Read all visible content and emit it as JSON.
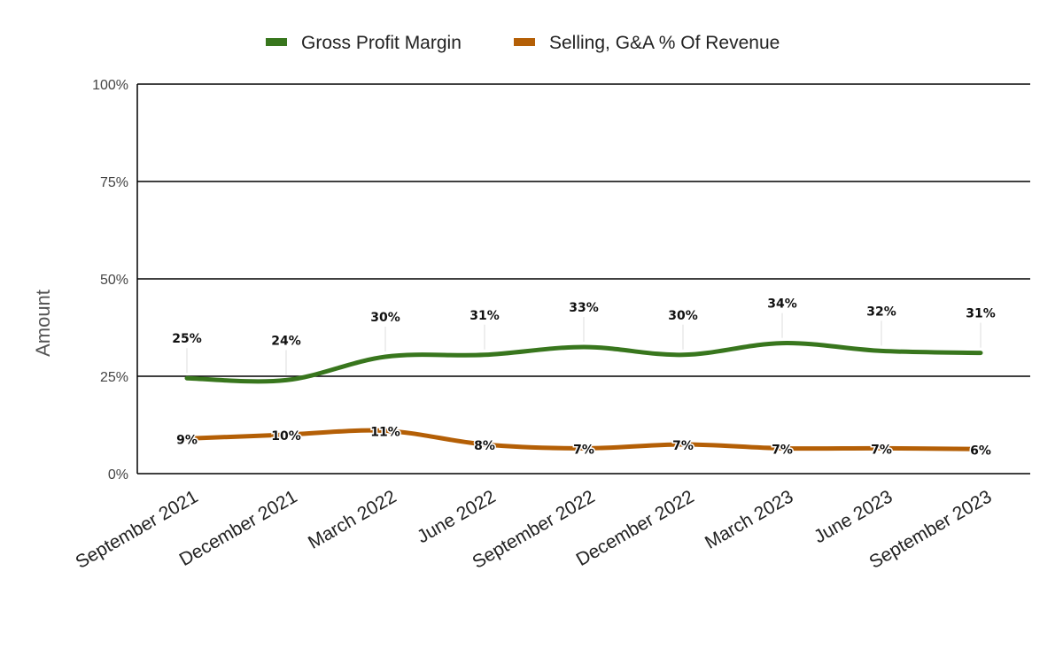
{
  "chart_data": {
    "type": "line",
    "title": "",
    "xlabel": "",
    "ylabel": "Amount",
    "categories": [
      "September 2021",
      "December 2021",
      "March 2022",
      "June 2022",
      "September 2022",
      "December 2022",
      "March 2023",
      "June 2023",
      "September 2023"
    ],
    "ylim": [
      0,
      100
    ],
    "y_ticks": [
      "0%",
      "25%",
      "50%",
      "75%",
      "100%"
    ],
    "y_tick_values": [
      0,
      25,
      50,
      75,
      100
    ],
    "grid": true,
    "legend_position": "top",
    "smooth": true,
    "series": [
      {
        "name": "Gross Profit Margin",
        "color": "#38761d",
        "values": [
          24.5,
          24,
          30,
          30.5,
          32.5,
          30.5,
          33.5,
          31.5,
          31
        ],
        "labels": [
          "25%",
          "24%",
          "30%",
          "31%",
          "33%",
          "30%",
          "34%",
          "32%",
          "31%"
        ]
      },
      {
        "name": "Selling, G&A % Of Revenue",
        "color": "#b45f06",
        "values": [
          9,
          10,
          11,
          7.5,
          6.5,
          7.5,
          6.5,
          6.5,
          6.3
        ],
        "labels": [
          "9%",
          "10%",
          "11%",
          "8%",
          "7%",
          "7%",
          "7%",
          "7%",
          "6%"
        ]
      }
    ]
  }
}
